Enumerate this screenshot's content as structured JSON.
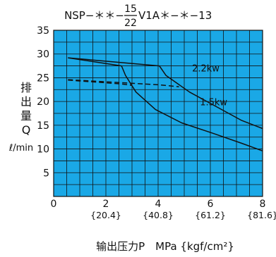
{
  "chart_data": {
    "type": "line",
    "title": {
      "prefix": "NSP−＊＊−",
      "fraction_top": "15",
      "fraction_bottom": "22",
      "suffix": "V1A＊−＊−13"
    },
    "ylabel": {
      "chars": [
        "排",
        "出",
        "量",
        "Q"
      ],
      "unit": "ℓ/min"
    },
    "xlabel": "输出压力P　MPa {kgf/cm²}",
    "xlim": [
      0,
      8
    ],
    "ylim": [
      0,
      35
    ],
    "x_ticks": [
      {
        "value": 0,
        "label": "0",
        "sub": ""
      },
      {
        "value": 2,
        "label": "2",
        "sub": "{20.4}"
      },
      {
        "value": 4,
        "label": "4",
        "sub": "{40.8}"
      },
      {
        "value": 6,
        "label": "6",
        "sub": "{61.2}"
      },
      {
        "value": 8,
        "label": "8",
        "sub": "{81.6}"
      }
    ],
    "y_ticks": [
      5,
      10,
      15,
      20,
      25,
      30,
      35
    ],
    "grid": true,
    "plot_background": "#1aa8e6",
    "line_color": "#111111",
    "series": [
      {
        "name": "2.2kw",
        "style": "solid",
        "x": [
          0.55,
          4.05,
          4.3,
          5.2,
          6.2,
          7.2,
          8.0
        ],
        "y": [
          29.2,
          27.5,
          25.5,
          22.0,
          19.0,
          16.0,
          14.3
        ]
      },
      {
        "name": "1.5kw",
        "style": "solid",
        "x": [
          0.55,
          2.6,
          2.75,
          3.15,
          3.9,
          4.9,
          6.1,
          7.2,
          8.0
        ],
        "y": [
          29.2,
          27.5,
          25.5,
          22.0,
          18.3,
          15.5,
          13.3,
          11.2,
          9.6
        ]
      },
      {
        "name": "",
        "style": "dashed",
        "x": [
          0.55,
          2.6,
          3.0
        ],
        "y": [
          24.5,
          23.7,
          23.4
        ]
      },
      {
        "name": "",
        "style": "dashed",
        "x": [
          0.55,
          4.05,
          4.8
        ],
        "y": [
          24.6,
          23.5,
          23.1
        ]
      }
    ],
    "annotations": [
      {
        "text": "2.2kw",
        "x": 5.3,
        "y": 26.3
      },
      {
        "text": "1.5kw",
        "x": 5.6,
        "y": 19.2
      }
    ]
  }
}
